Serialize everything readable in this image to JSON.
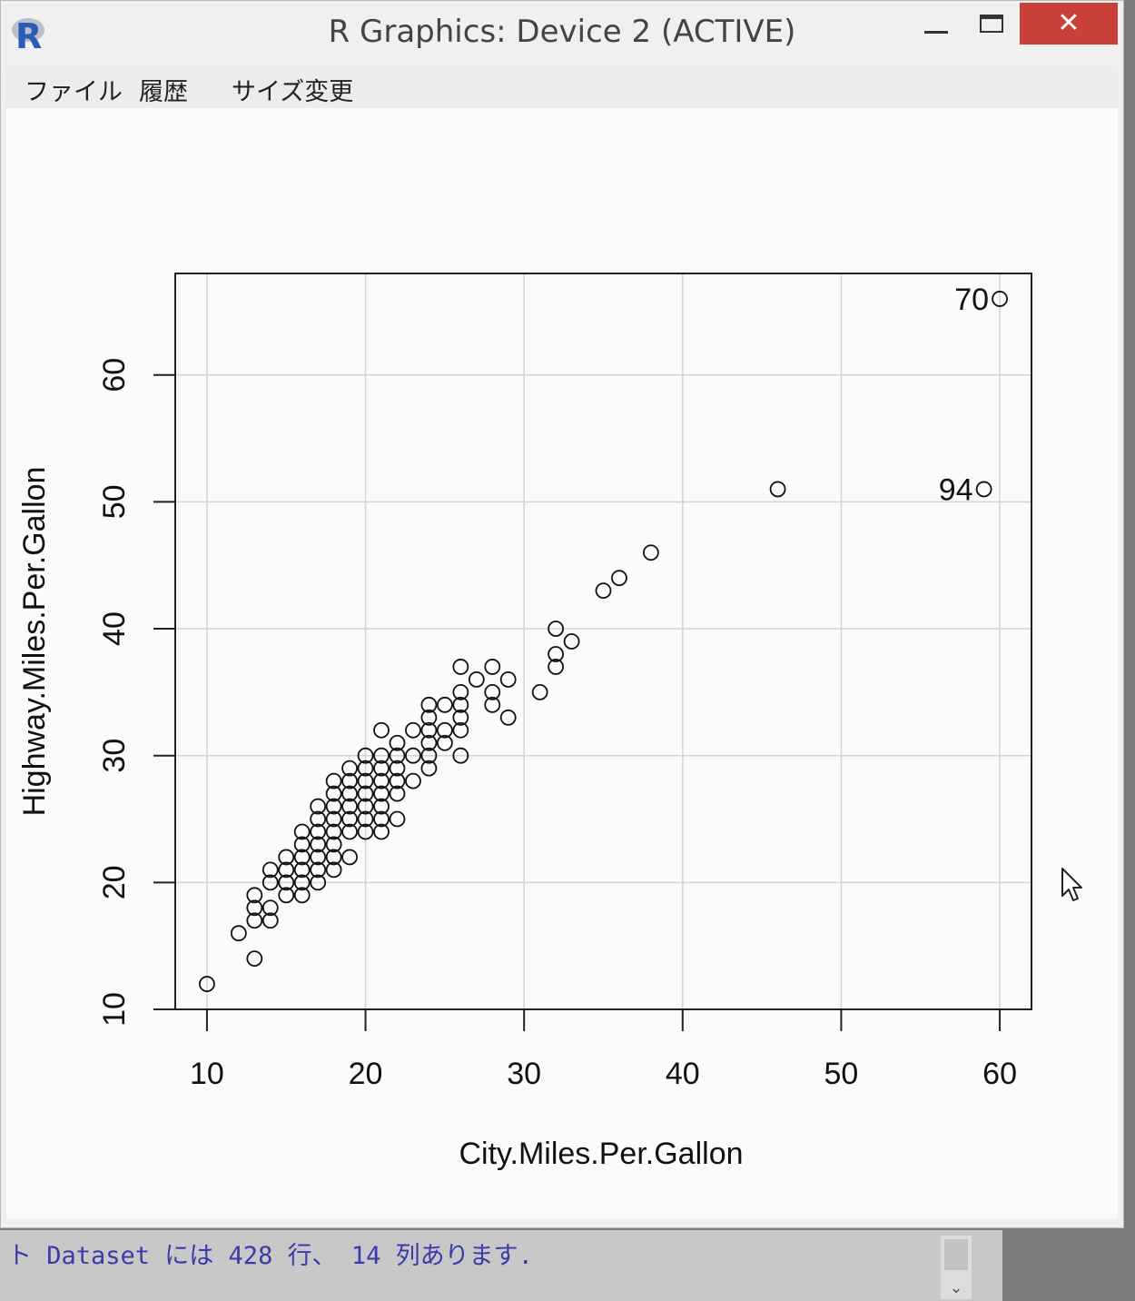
{
  "window": {
    "title": "R Graphics: Device 2 (ACTIVE)",
    "logo_letter": "R",
    "controls": {
      "minimize": "—",
      "close": "✕"
    }
  },
  "menu": {
    "items": [
      "ファイル",
      "履歴",
      "サイズ変更"
    ]
  },
  "console": {
    "line": "ト Dataset には 428 行、 14 列あります."
  },
  "icons": {
    "cursor": "mouse-pointer-icon",
    "scroll_down": "chevron-down-icon"
  },
  "chart_data": {
    "type": "scatter",
    "xlabel": "City.Miles.Per.Gallon",
    "ylabel": "Highway.Miles.Per.Gallon",
    "xlim": [
      8,
      62
    ],
    "ylim": [
      10,
      68
    ],
    "x_ticks": [
      10,
      20,
      30,
      40,
      50,
      60
    ],
    "y_ticks": [
      10,
      20,
      30,
      40,
      50,
      60
    ],
    "grid": true,
    "marker": "open-circle",
    "points": [
      [
        10,
        12
      ],
      [
        12,
        16
      ],
      [
        13,
        14
      ],
      [
        13,
        17
      ],
      [
        13,
        18
      ],
      [
        13,
        19
      ],
      [
        14,
        17
      ],
      [
        14,
        18
      ],
      [
        14,
        20
      ],
      [
        14,
        21
      ],
      [
        15,
        19
      ],
      [
        15,
        20
      ],
      [
        15,
        21
      ],
      [
        15,
        22
      ],
      [
        16,
        19
      ],
      [
        16,
        20
      ],
      [
        16,
        21
      ],
      [
        16,
        22
      ],
      [
        16,
        23
      ],
      [
        16,
        24
      ],
      [
        17,
        20
      ],
      [
        17,
        21
      ],
      [
        17,
        22
      ],
      [
        17,
        23
      ],
      [
        17,
        24
      ],
      [
        17,
        25
      ],
      [
        17,
        26
      ],
      [
        18,
        21
      ],
      [
        18,
        22
      ],
      [
        18,
        23
      ],
      [
        18,
        24
      ],
      [
        18,
        25
      ],
      [
        18,
        26
      ],
      [
        18,
        27
      ],
      [
        18,
        28
      ],
      [
        19,
        22
      ],
      [
        19,
        24
      ],
      [
        19,
        25
      ],
      [
        19,
        26
      ],
      [
        19,
        27
      ],
      [
        19,
        28
      ],
      [
        19,
        29
      ],
      [
        20,
        24
      ],
      [
        20,
        25
      ],
      [
        20,
        26
      ],
      [
        20,
        27
      ],
      [
        20,
        28
      ],
      [
        20,
        29
      ],
      [
        20,
        30
      ],
      [
        21,
        24
      ],
      [
        21,
        25
      ],
      [
        21,
        26
      ],
      [
        21,
        27
      ],
      [
        21,
        28
      ],
      [
        21,
        29
      ],
      [
        21,
        30
      ],
      [
        21,
        32
      ],
      [
        22,
        25
      ],
      [
        22,
        27
      ],
      [
        22,
        28
      ],
      [
        22,
        29
      ],
      [
        22,
        30
      ],
      [
        22,
        31
      ],
      [
        23,
        28
      ],
      [
        23,
        30
      ],
      [
        23,
        32
      ],
      [
        24,
        29
      ],
      [
        24,
        30
      ],
      [
        24,
        31
      ],
      [
        24,
        32
      ],
      [
        24,
        33
      ],
      [
        24,
        34
      ],
      [
        25,
        31
      ],
      [
        25,
        32
      ],
      [
        25,
        34
      ],
      [
        26,
        30
      ],
      [
        26,
        32
      ],
      [
        26,
        33
      ],
      [
        26,
        34
      ],
      [
        26,
        35
      ],
      [
        26,
        37
      ],
      [
        27,
        36
      ],
      [
        28,
        34
      ],
      [
        28,
        35
      ],
      [
        28,
        37
      ],
      [
        29,
        33
      ],
      [
        29,
        36
      ],
      [
        31,
        35
      ],
      [
        32,
        37
      ],
      [
        32,
        38
      ],
      [
        32,
        40
      ],
      [
        33,
        39
      ],
      [
        35,
        43
      ],
      [
        36,
        44
      ],
      [
        38,
        46
      ],
      [
        46,
        51
      ],
      [
        59,
        51
      ],
      [
        60,
        66
      ]
    ],
    "labeled_points": [
      {
        "x": 60,
        "y": 66,
        "label": "70"
      },
      {
        "x": 59,
        "y": 51,
        "label": "94"
      }
    ]
  }
}
